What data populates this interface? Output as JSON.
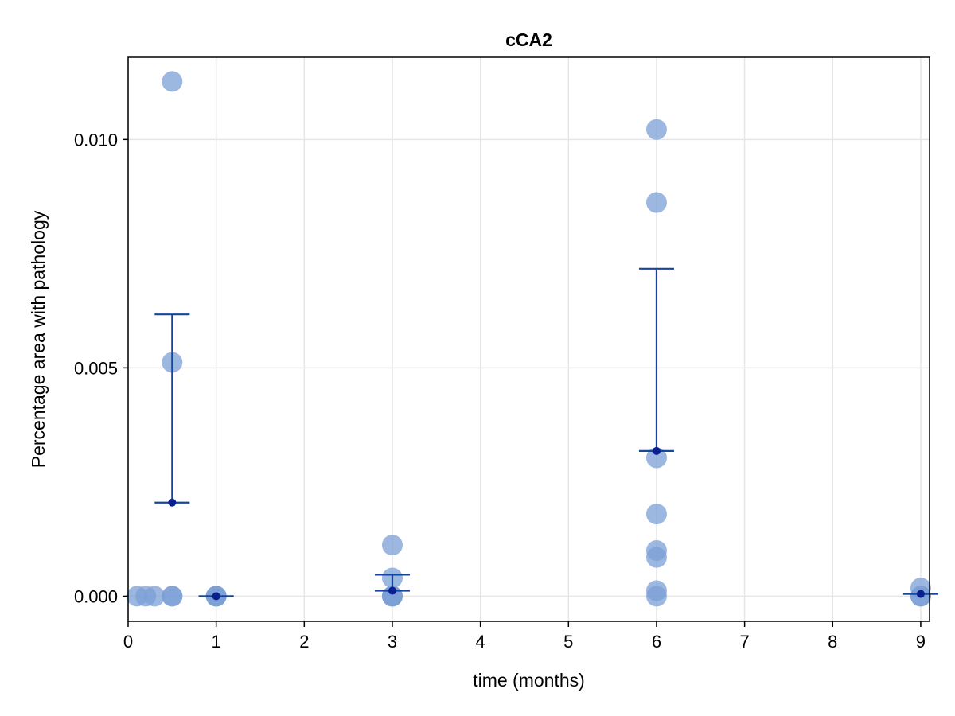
{
  "chart_data": {
    "type": "scatter",
    "title": "cCA2",
    "xlabel": "time (months)",
    "ylabel": "Percentage area with pathology",
    "xlim": [
      0,
      9.1
    ],
    "ylim": [
      -0.00055,
      0.0118
    ],
    "xticks": [
      0,
      1,
      2,
      3,
      4,
      5,
      6,
      7,
      8,
      9
    ],
    "yticks": [
      0.0,
      0.005,
      0.01
    ],
    "ytick_labels": [
      "0.000",
      "0.005",
      "0.010"
    ],
    "grid": true,
    "legend": "none",
    "colors": {
      "points": "#7b9fd6",
      "errorbar": "#1446a0",
      "mean": "#0a1f8f",
      "grid": "#e6e6e6",
      "frame": "#000000"
    },
    "series": [
      {
        "points": [
          {
            "x": 0.1,
            "y": 0.0
          },
          {
            "x": 0.2,
            "y": 0.0
          },
          {
            "x": 0.3,
            "y": 0.0
          },
          {
            "x": 0.5,
            "y": 0.0
          },
          {
            "x": 0.5,
            "y": 0.0
          },
          {
            "x": 0.5,
            "y": 0.00512
          },
          {
            "x": 0.5,
            "y": 0.01127
          },
          {
            "x": 1.0,
            "y": 0.0
          },
          {
            "x": 1.0,
            "y": 0.0
          },
          {
            "x": 1.0,
            "y": 0.0
          },
          {
            "x": 3.0,
            "y": 0.0
          },
          {
            "x": 3.0,
            "y": 0.0
          },
          {
            "x": 3.0,
            "y": 0.0
          },
          {
            "x": 3.0,
            "y": 0.0004
          },
          {
            "x": 3.0,
            "y": 0.00112
          },
          {
            "x": 6.0,
            "y": 0.0
          },
          {
            "x": 6.0,
            "y": 0.00012
          },
          {
            "x": 6.0,
            "y": 0.00085
          },
          {
            "x": 6.0,
            "y": 0.001
          },
          {
            "x": 6.0,
            "y": 0.0018
          },
          {
            "x": 6.0,
            "y": 0.00303
          },
          {
            "x": 6.0,
            "y": 0.00862
          },
          {
            "x": 6.0,
            "y": 0.01022
          },
          {
            "x": 9.0,
            "y": 0.0
          },
          {
            "x": 9.0,
            "y": 0.0
          },
          {
            "x": 9.0,
            "y": 0.00018
          }
        ]
      }
    ],
    "error_bars": [
      {
        "x": 0.5,
        "mean": 0.00205,
        "low": 0.00205,
        "high": 0.00617
      },
      {
        "x": 1.0,
        "mean": 0.0,
        "low": 0.0,
        "high": 0.0
      },
      {
        "x": 3.0,
        "mean": 0.00012,
        "low": 0.00012,
        "high": 0.00047
      },
      {
        "x": 6.0,
        "mean": 0.00318,
        "low": 0.00318,
        "high": 0.00717
      },
      {
        "x": 9.0,
        "mean": 5e-05,
        "low": 5e-05,
        "high": 5e-05
      }
    ]
  }
}
